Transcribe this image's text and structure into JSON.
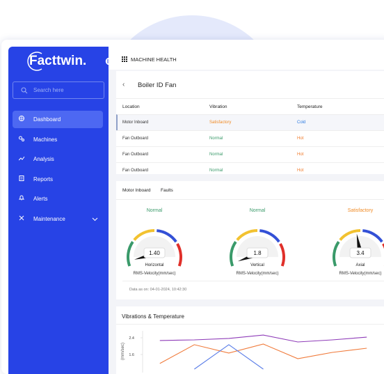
{
  "sidebar": {
    "logo": "Facttwin.",
    "search_placeholder": "Search here",
    "active_index": 0,
    "nav": [
      "Dashboard",
      "Machines",
      "Analysis",
      "Reports",
      "Alerts",
      "Maintenance"
    ]
  },
  "topbar": {
    "title": "MACHINE HEALTH"
  },
  "panel": {
    "title": "Boiler ID Fan"
  },
  "table": {
    "headers": [
      "Location",
      "Vibration",
      "Temperature"
    ],
    "rows": [
      [
        "Motor Inboard",
        "Satisfactory",
        "Cold"
      ],
      [
        "Fan Outboard",
        "Normal",
        "Hot"
      ],
      [
        "Fan Outboard",
        "Normal",
        "Hot"
      ],
      [
        "Fan Outboard",
        "Normal",
        "Hot"
      ]
    ],
    "selected_row": 0,
    "status_colors": {
      "Satisfactory": "#f08a24",
      "Normal": "#3a9a6a",
      "Cold": "#2f7de1",
      "Hot": "#f07a2a"
    }
  },
  "tabs": [
    "Motor Inboard",
    "Faults"
  ],
  "gauges": [
    {
      "status": "Normal",
      "value": "1.40",
      "axis": "Horizontal",
      "unit": "RMS-Velocity(mm/sec)",
      "color": "#3a9a6a"
    },
    {
      "status": "Normal",
      "value": "1.8",
      "axis": "Vertical",
      "unit": "RMS-Velocity(mm/sec)",
      "color": "#3a9a6a"
    },
    {
      "status": "Satisfactory",
      "value": "3.4",
      "axis": "Axial",
      "unit": "RMS-Velocity(mm/sec)",
      "color": "#f08a24"
    }
  ],
  "data_timestamp": "Data as on: 04-01-2024, 10:42:30",
  "chart_data": {
    "type": "line",
    "title": "Vibrations & Temperature",
    "y_label": "(mm/sec)",
    "categories": [
      null,
      null,
      null,
      null,
      null,
      null,
      null
    ],
    "series": [
      {
        "color": "#8e3bb8",
        "values": [
          2.27,
          2.3,
          2.37,
          2.53,
          2.2,
          2.3,
          2.43
        ]
      },
      {
        "color": "#f07a3a",
        "values": [
          1.17,
          2.07,
          1.67,
          2.1,
          1.4,
          1.7,
          1.9
        ]
      },
      {
        "color": "#5a7de8",
        "values": [
          null,
          0.9,
          2.07,
          0.9,
          null,
          null,
          null
        ]
      }
    ],
    "ylim": [
      1.0,
      2.8
    ],
    "yticks": [
      1.6,
      2.4
    ]
  }
}
